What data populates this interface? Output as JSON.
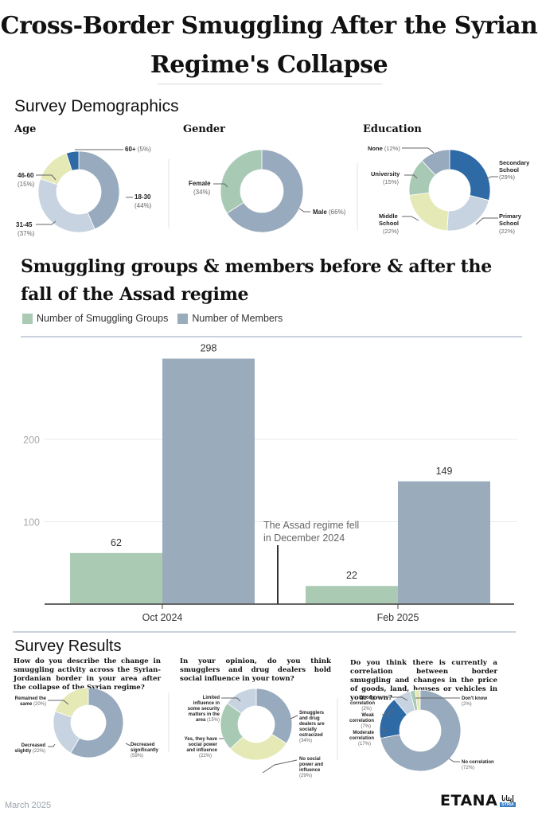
{
  "title": {
    "line1": "Cross-Border Smuggling After the Syrian",
    "line2": "Regime's Collapse"
  },
  "demographics": {
    "heading": "Survey Demographics",
    "charts": [
      {
        "title": "Age",
        "slices": [
          {
            "label": "18-30",
            "pct": 44,
            "color": "#98aabd"
          },
          {
            "label": "31-45",
            "pct": 37,
            "color": "#c7d3e1"
          },
          {
            "label": "46-60",
            "pct": 15,
            "color": "#e4e9b6"
          },
          {
            "label": "60+",
            "pct": 5,
            "color": "#2d6aa6"
          }
        ]
      },
      {
        "title": "Gender",
        "slices": [
          {
            "label": "Male",
            "pct": 66,
            "color": "#98aabd"
          },
          {
            "label": "Female",
            "pct": 34,
            "color": "#a8cab4"
          }
        ]
      },
      {
        "title": "Education",
        "slices": [
          {
            "label": "Secondary School",
            "pct": 29,
            "color": "#2d6aa6"
          },
          {
            "label": "Primary School",
            "pct": 22,
            "color": "#c7d3e1"
          },
          {
            "label": "Middle School",
            "pct": 22,
            "color": "#e4e9b6"
          },
          {
            "label": "University",
            "pct": 15,
            "color": "#a8cab4"
          },
          {
            "label": "None",
            "pct": 12,
            "color": "#98aabd"
          }
        ]
      }
    ]
  },
  "chart_data": [
    {
      "type": "bar",
      "title": "Smuggling groups & members before & after the fall of the Assad regime",
      "categories": [
        "Oct 2024",
        "Feb 2025"
      ],
      "series": [
        {
          "name": "Number of Smuggling Groups",
          "values": [
            62,
            22
          ],
          "color": "#abcab3"
        },
        {
          "name": "Number of Members",
          "values": [
            298,
            149
          ],
          "color": "#9aabbc"
        }
      ],
      "yticks": [
        100,
        200
      ],
      "ylim": [
        0,
        310
      ],
      "grid": true,
      "legend": "top-left",
      "annotation": {
        "line1": "The Assad regime fell",
        "line2": "in December 2024"
      },
      "xlabel": "",
      "ylabel": ""
    },
    {
      "type": "pie",
      "title": "Age",
      "labels": [
        "18-30",
        "31-45",
        "46-60",
        "60+"
      ],
      "values": [
        44,
        37,
        15,
        5
      ]
    },
    {
      "type": "pie",
      "title": "Gender",
      "labels": [
        "Male",
        "Female"
      ],
      "values": [
        66,
        34
      ]
    },
    {
      "type": "pie",
      "title": "Education",
      "labels": [
        "Secondary School",
        "Primary School",
        "Middle School",
        "University",
        "None"
      ],
      "values": [
        29,
        22,
        22,
        15,
        12
      ]
    },
    {
      "type": "pie",
      "title": "How do you describe the change in smuggling activity across the Syrian-Jordanian border in your area after the collapse of the Syrian regime?",
      "labels": [
        "Decreased significantly",
        "Decreased slightly",
        "Remained the same"
      ],
      "values": [
        59,
        22,
        20
      ]
    },
    {
      "type": "pie",
      "title": "In your opinion, do you think smugglers and drug dealers hold social influence in your town?",
      "labels": [
        "Smugglers and drug dealers are socially ostracized",
        "No social power and influence",
        "Yes, they have social power and influence",
        "Limited influence in some security matters in the area"
      ],
      "values": [
        34,
        29,
        22,
        15
      ]
    },
    {
      "type": "pie",
      "title": "Do you think there is currently a correlation between border smuggling and changes in the price of goods, land, houses or vehicles in your town?",
      "labels": [
        "No correlation",
        "Moderate correlation",
        "Weak correlation",
        "Strong correlation",
        "Don't know"
      ],
      "values": [
        72,
        17,
        7,
        2,
        2
      ]
    }
  ],
  "survey": {
    "heading": "Survey Results",
    "questions": [
      {
        "text": "How do you describe the change in smuggling activity across the Syrian-Jordanian border in your area after the collapse of the Syrian regime?",
        "slices": [
          {
            "label": "Decreased significantly",
            "pct": 59,
            "color": "#98aabd"
          },
          {
            "label": "Decreased slightly",
            "pct": 22,
            "color": "#c7d3e1"
          },
          {
            "label": "Remained the same",
            "pct": 20,
            "color": "#e4e9b6"
          }
        ]
      },
      {
        "text": "In your opinion, do you think smugglers and drug dealers hold social influence in your town?",
        "slices": [
          {
            "label": "Smugglers and drug dealers are socially ostracized",
            "pct": 34,
            "color": "#98aabd"
          },
          {
            "label": "No social power and influence",
            "pct": 29,
            "color": "#e4e9b6"
          },
          {
            "label": "Yes, they have social power and influence",
            "pct": 22,
            "color": "#a8cab4"
          },
          {
            "label": "Limited influence in some security matters in the area",
            "pct": 15,
            "color": "#c7d3e1"
          }
        ]
      },
      {
        "text": "Do you think there is currently a correlation between border smuggling and changes in the price of goods, land, houses or vehicles in your town?",
        "slices": [
          {
            "label": "No correlation",
            "pct": 72,
            "color": "#98aabd"
          },
          {
            "label": "Moderate correlation",
            "pct": 17,
            "color": "#2d6aa6"
          },
          {
            "label": "Weak correlation",
            "pct": 7,
            "color": "#c7d3e1"
          },
          {
            "label": "Strong correlation",
            "pct": 2,
            "color": "#a8cab4"
          },
          {
            "label": "Don't know",
            "pct": 2,
            "color": "#e4e9b6"
          }
        ]
      }
    ]
  },
  "footer": {
    "date": "March 2025",
    "logo": "ETANA",
    "logo_arabic": "إيتانا",
    "logo_tag": "SYRIA"
  }
}
